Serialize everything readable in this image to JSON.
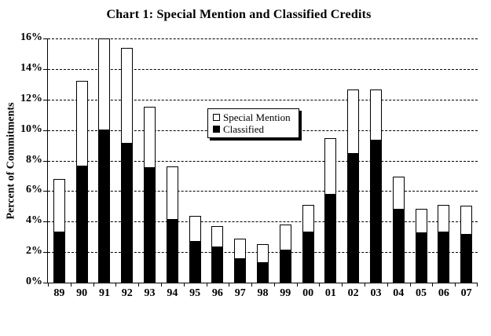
{
  "title": "Chart 1: Special Mention and Classified Credits",
  "chart_data": {
    "type": "bar",
    "stacked": true,
    "title": "Chart 1: Special Mention and Classified Credits",
    "ylabel": "Percent of Commitments",
    "xlabel": "",
    "categories": [
      "89",
      "90",
      "91",
      "92",
      "93",
      "94",
      "95",
      "96",
      "97",
      "98",
      "99",
      "00",
      "01",
      "02",
      "03",
      "04",
      "05",
      "06",
      "07"
    ],
    "series": [
      {
        "name": "Classified",
        "color": "#000000",
        "values": [
          3.3,
          7.6,
          10.0,
          9.1,
          7.5,
          4.1,
          2.7,
          2.3,
          1.55,
          1.3,
          2.1,
          3.3,
          5.75,
          8.45,
          9.3,
          4.8,
          3.25,
          3.3,
          3.15
        ]
      },
      {
        "name": "Special Mention",
        "color": "#ffffff",
        "values": [
          3.5,
          5.6,
          6.0,
          6.3,
          4.0,
          3.5,
          1.7,
          1.4,
          1.35,
          1.2,
          1.7,
          1.8,
          3.7,
          4.2,
          3.35,
          2.15,
          1.6,
          1.8,
          1.9
        ]
      }
    ],
    "stacked_totals": [
      6.8,
      13.2,
      16.0,
      15.4,
      11.5,
      7.6,
      4.4,
      3.7,
      2.9,
      2.5,
      3.8,
      5.1,
      9.45,
      12.65,
      12.65,
      6.95,
      4.85,
      5.1,
      5.05
    ],
    "ylim": [
      0,
      16
    ],
    "ytick_step": 2,
    "ytick_labels": [
      "0%",
      "2%",
      "4%",
      "6%",
      "8%",
      "10%",
      "12%",
      "14%",
      "16%"
    ],
    "grid": "horizontal-dashed",
    "legend_position": "upper-center"
  },
  "legend": {
    "items": [
      {
        "label": "Special Mention",
        "fill": "#ffffff"
      },
      {
        "label": "Classified",
        "fill": "#000000"
      }
    ]
  },
  "colors": {
    "background": "#ffffff",
    "axis": "#000000",
    "grid": "#000000",
    "bar_classified": "#000000",
    "bar_special_mention": "#ffffff"
  }
}
